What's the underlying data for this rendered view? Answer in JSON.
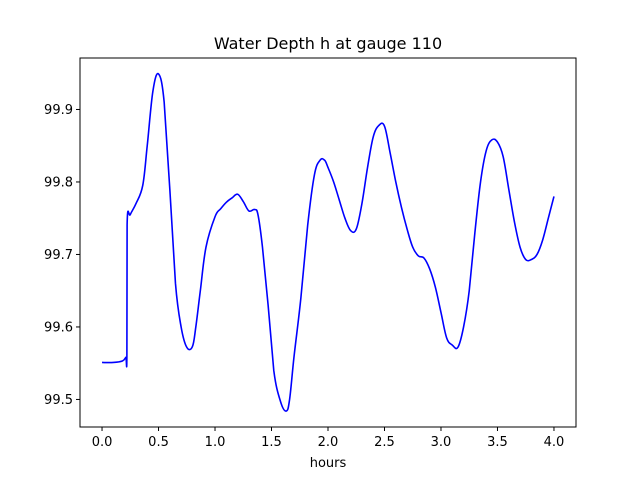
{
  "chart_data": {
    "type": "line",
    "title": "Water Depth h at gauge 110",
    "xlabel": "hours",
    "ylabel": "",
    "xlim": [
      -0.195,
      4.195
    ],
    "ylim": [
      99.462,
      99.971
    ],
    "xticks": [
      0.0,
      0.5,
      1.0,
      1.5,
      2.0,
      2.5,
      3.0,
      3.5,
      4.0
    ],
    "xtick_labels": [
      "0.0",
      "0.5",
      "1.0",
      "1.5",
      "2.0",
      "2.5",
      "3.0",
      "3.5",
      "4.0"
    ],
    "yticks": [
      99.5,
      99.6,
      99.7,
      99.8,
      99.9
    ],
    "ytick_labels": [
      "99.5",
      "99.6",
      "99.7",
      "99.8",
      "99.9"
    ],
    "grid": false,
    "series": [
      {
        "name": "",
        "color": "#0000ff",
        "x": [
          0.0,
          0.1,
          0.18,
          0.21,
          0.22,
          0.222,
          0.25,
          0.3,
          0.36,
          0.4,
          0.45,
          0.5,
          0.55,
          0.6,
          0.65,
          0.7,
          0.75,
          0.8,
          0.83,
          0.87,
          0.92,
          1.0,
          1.05,
          1.1,
          1.15,
          1.2,
          1.25,
          1.3,
          1.35,
          1.38,
          1.42,
          1.47,
          1.52,
          1.58,
          1.63,
          1.66,
          1.7,
          1.76,
          1.82,
          1.88,
          1.93,
          1.97,
          2.0,
          2.05,
          2.1,
          2.15,
          2.2,
          2.25,
          2.3,
          2.35,
          2.4,
          2.45,
          2.5,
          2.55,
          2.6,
          2.65,
          2.7,
          2.75,
          2.8,
          2.85,
          2.9,
          2.95,
          3.0,
          3.05,
          3.1,
          3.15,
          3.2,
          3.25,
          3.3,
          3.35,
          3.4,
          3.45,
          3.5,
          3.55,
          3.6,
          3.65,
          3.7,
          3.75,
          3.8,
          3.85,
          3.9,
          3.95,
          4.0
        ],
        "y": [
          99.551,
          99.551,
          99.553,
          99.558,
          99.56,
          99.741,
          99.755,
          99.77,
          99.795,
          99.85,
          99.925,
          99.949,
          99.91,
          99.79,
          99.66,
          99.6,
          99.572,
          99.573,
          99.6,
          99.65,
          99.71,
          99.752,
          99.763,
          99.772,
          99.778,
          99.783,
          99.773,
          99.76,
          99.762,
          99.755,
          99.71,
          99.63,
          99.54,
          99.497,
          99.484,
          99.5,
          99.56,
          99.64,
          99.74,
          99.81,
          99.83,
          99.83,
          99.82,
          99.8,
          99.775,
          99.75,
          99.733,
          99.735,
          99.77,
          99.82,
          99.862,
          99.878,
          99.877,
          99.84,
          99.8,
          99.765,
          99.735,
          99.71,
          99.698,
          99.695,
          99.68,
          99.655,
          99.62,
          99.585,
          99.575,
          99.572,
          99.6,
          99.65,
          99.73,
          99.8,
          99.843,
          99.858,
          99.855,
          99.835,
          99.79,
          99.745,
          99.71,
          99.693,
          99.693,
          99.7,
          99.72,
          99.75,
          99.78
        ]
      }
    ]
  }
}
